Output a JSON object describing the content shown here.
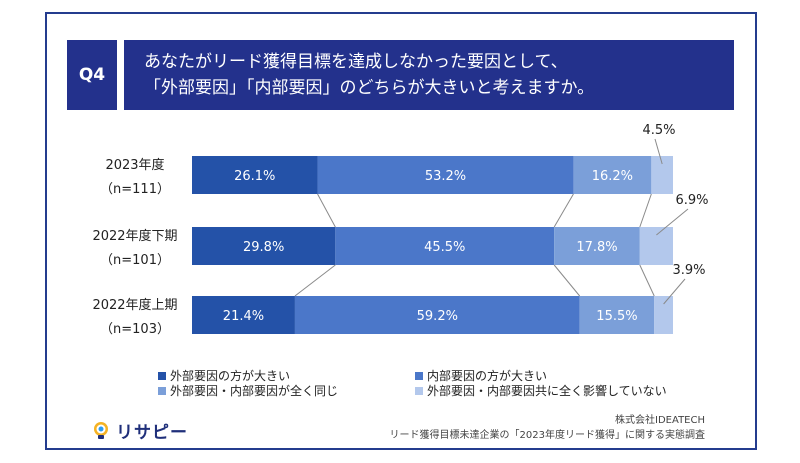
{
  "question": {
    "number": "Q4",
    "line1": "あなたがリード獲得目標を達成しなかった要因として、",
    "line2": "「外部要因」「内部要因」のどちらが大きいと考えますか。"
  },
  "chart_data": {
    "type": "bar",
    "orientation": "horizontal",
    "stacked": true,
    "normalized_percent": true,
    "categories": [
      {
        "label": "2023年度",
        "n": "（n=111）"
      },
      {
        "label": "2022年度下期",
        "n": "（n=101）"
      },
      {
        "label": "2022年度上期",
        "n": "（n=103）"
      }
    ],
    "series": [
      {
        "name": "外部要因の方が大きい",
        "color": "#2452a8",
        "values": [
          26.1,
          29.8,
          21.4
        ]
      },
      {
        "name": "内部要因の方が大きい",
        "color": "#4b77c9",
        "values": [
          53.2,
          45.5,
          59.2
        ]
      },
      {
        "name": "外部要因・内部要因が全く同じ",
        "color": "#7b9fd9",
        "values": [
          16.2,
          17.8,
          15.5
        ]
      },
      {
        "name": "外部要因・内部要因共に全く影響していない",
        "color": "#b3c8ec",
        "values": [
          4.5,
          6.9,
          3.9
        ]
      }
    ],
    "data_labels": [
      [
        "26.1%",
        "53.2%",
        "16.2%",
        "4.5%"
      ],
      [
        "29.8%",
        "45.5%",
        "17.8%",
        "6.9%"
      ],
      [
        "21.4%",
        "59.2%",
        "15.5%",
        "3.9%"
      ]
    ],
    "legend_position": "bottom",
    "grid": false
  },
  "brand": {
    "logo_text": "リサピー"
  },
  "footer": {
    "company": "株式会社IDEATECH",
    "survey": "リード獲得目標未達企業の「2023年度リード獲得」に関する実態調査"
  }
}
